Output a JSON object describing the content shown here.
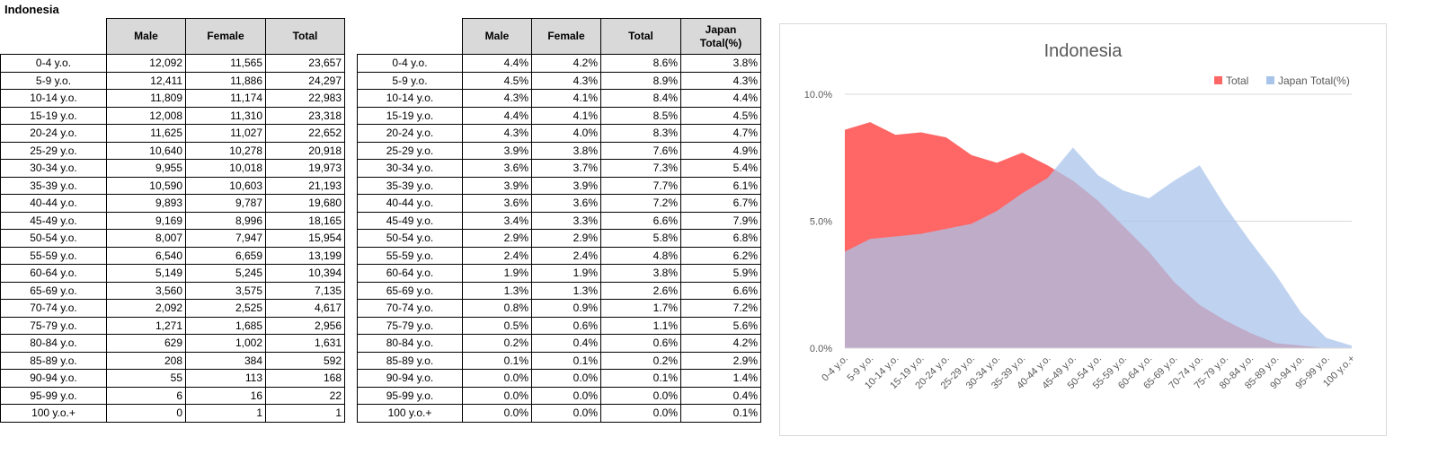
{
  "sheet_title": "Indonesia",
  "table1": {
    "headers": [
      "Male",
      "Female",
      "Total"
    ],
    "rows": [
      {
        "label": "0-4 y.o.",
        "male": "12,092",
        "female": "11,565",
        "total": "23,657"
      },
      {
        "label": "5-9 y.o.",
        "male": "12,411",
        "female": "11,886",
        "total": "24,297"
      },
      {
        "label": "10-14 y.o.",
        "male": "11,809",
        "female": "11,174",
        "total": "22,983"
      },
      {
        "label": "15-19 y.o.",
        "male": "12,008",
        "female": "11,310",
        "total": "23,318"
      },
      {
        "label": "20-24 y.o.",
        "male": "11,625",
        "female": "11,027",
        "total": "22,652"
      },
      {
        "label": "25-29 y.o.",
        "male": "10,640",
        "female": "10,278",
        "total": "20,918"
      },
      {
        "label": "30-34 y.o.",
        "male": "9,955",
        "female": "10,018",
        "total": "19,973"
      },
      {
        "label": "35-39 y.o.",
        "male": "10,590",
        "female": "10,603",
        "total": "21,193"
      },
      {
        "label": "40-44 y.o.",
        "male": "9,893",
        "female": "9,787",
        "total": "19,680"
      },
      {
        "label": "45-49 y.o.",
        "male": "9,169",
        "female": "8,996",
        "total": "18,165"
      },
      {
        "label": "50-54 y.o.",
        "male": "8,007",
        "female": "7,947",
        "total": "15,954"
      },
      {
        "label": "55-59 y.o.",
        "male": "6,540",
        "female": "6,659",
        "total": "13,199"
      },
      {
        "label": "60-64 y.o.",
        "male": "5,149",
        "female": "5,245",
        "total": "10,394"
      },
      {
        "label": "65-69 y.o.",
        "male": "3,560",
        "female": "3,575",
        "total": "7,135"
      },
      {
        "label": "70-74 y.o.",
        "male": "2,092",
        "female": "2,525",
        "total": "4,617"
      },
      {
        "label": "75-79 y.o.",
        "male": "1,271",
        "female": "1,685",
        "total": "2,956"
      },
      {
        "label": "80-84 y.o.",
        "male": "629",
        "female": "1,002",
        "total": "1,631"
      },
      {
        "label": "85-89 y.o.",
        "male": "208",
        "female": "384",
        "total": "592"
      },
      {
        "label": "90-94 y.o.",
        "male": "55",
        "female": "113",
        "total": "168"
      },
      {
        "label": "95-99 y.o.",
        "male": "6",
        "female": "16",
        "total": "22"
      },
      {
        "label": "100 y.o.+",
        "male": "0",
        "female": "1",
        "total": "1"
      }
    ]
  },
  "table2": {
    "headers": [
      "Male",
      "Female",
      "Total",
      "Japan Total(%)"
    ],
    "rows": [
      {
        "label": "0-4 y.o.",
        "male": "4.4%",
        "female": "4.2%",
        "total": "8.6%",
        "japan": "3.8%"
      },
      {
        "label": "5-9 y.o.",
        "male": "4.5%",
        "female": "4.3%",
        "total": "8.9%",
        "japan": "4.3%"
      },
      {
        "label": "10-14 y.o.",
        "male": "4.3%",
        "female": "4.1%",
        "total": "8.4%",
        "japan": "4.4%"
      },
      {
        "label": "15-19 y.o.",
        "male": "4.4%",
        "female": "4.1%",
        "total": "8.5%",
        "japan": "4.5%"
      },
      {
        "label": "20-24 y.o.",
        "male": "4.3%",
        "female": "4.0%",
        "total": "8.3%",
        "japan": "4.7%"
      },
      {
        "label": "25-29 y.o.",
        "male": "3.9%",
        "female": "3.8%",
        "total": "7.6%",
        "japan": "4.9%"
      },
      {
        "label": "30-34 y.o.",
        "male": "3.6%",
        "female": "3.7%",
        "total": "7.3%",
        "japan": "5.4%"
      },
      {
        "label": "35-39 y.o.",
        "male": "3.9%",
        "female": "3.9%",
        "total": "7.7%",
        "japan": "6.1%"
      },
      {
        "label": "40-44 y.o.",
        "male": "3.6%",
        "female": "3.6%",
        "total": "7.2%",
        "japan": "6.7%"
      },
      {
        "label": "45-49 y.o.",
        "male": "3.4%",
        "female": "3.3%",
        "total": "6.6%",
        "japan": "7.9%"
      },
      {
        "label": "50-54 y.o.",
        "male": "2.9%",
        "female": "2.9%",
        "total": "5.8%",
        "japan": "6.8%"
      },
      {
        "label": "55-59 y.o.",
        "male": "2.4%",
        "female": "2.4%",
        "total": "4.8%",
        "japan": "6.2%"
      },
      {
        "label": "60-64 y.o.",
        "male": "1.9%",
        "female": "1.9%",
        "total": "3.8%",
        "japan": "5.9%"
      },
      {
        "label": "65-69 y.o.",
        "male": "1.3%",
        "female": "1.3%",
        "total": "2.6%",
        "japan": "6.6%"
      },
      {
        "label": "70-74 y.o.",
        "male": "0.8%",
        "female": "0.9%",
        "total": "1.7%",
        "japan": "7.2%"
      },
      {
        "label": "75-79 y.o.",
        "male": "0.5%",
        "female": "0.6%",
        "total": "1.1%",
        "japan": "5.6%"
      },
      {
        "label": "80-84 y.o.",
        "male": "0.2%",
        "female": "0.4%",
        "total": "0.6%",
        "japan": "4.2%"
      },
      {
        "label": "85-89 y.o.",
        "male": "0.1%",
        "female": "0.1%",
        "total": "0.2%",
        "japan": "2.9%"
      },
      {
        "label": "90-94 y.o.",
        "male": "0.0%",
        "female": "0.0%",
        "total": "0.1%",
        "japan": "1.4%"
      },
      {
        "label": "95-99 y.o.",
        "male": "0.0%",
        "female": "0.0%",
        "total": "0.0%",
        "japan": "0.4%"
      },
      {
        "label": "100 y.o.+",
        "male": "0.0%",
        "female": "0.0%",
        "total": "0.0%",
        "japan": "0.1%"
      }
    ]
  },
  "chart_data": {
    "type": "area",
    "title": "Indonesia",
    "xlabel": "",
    "ylabel": "",
    "categories": [
      "0-4 y.o.",
      "5-9 y.o.",
      "10-14 y.o.",
      "15-19 y.o.",
      "20-24 y.o.",
      "25-29 y.o.",
      "30-34 y.o.",
      "35-39 y.o.",
      "40-44 y.o.",
      "45-49 y.o.",
      "50-54 y.o.",
      "55-59 y.o.",
      "60-64 y.o.",
      "65-69 y.o.",
      "70-74 y.o.",
      "75-79 y.o.",
      "80-84 y.o.",
      "85-89 y.o.",
      "90-94 y.o.",
      "95-99 y.o.",
      "100 y.o.+"
    ],
    "series": [
      {
        "name": "Total",
        "color": "#ff6666",
        "values": [
          8.6,
          8.9,
          8.4,
          8.5,
          8.3,
          7.6,
          7.3,
          7.7,
          7.2,
          6.6,
          5.8,
          4.8,
          3.8,
          2.6,
          1.7,
          1.1,
          0.6,
          0.2,
          0.1,
          0.0,
          0.0
        ]
      },
      {
        "name": "Japan Total(%)",
        "color": "#a9c4eb",
        "values": [
          3.8,
          4.3,
          4.4,
          4.5,
          4.7,
          4.9,
          5.4,
          6.1,
          6.7,
          7.9,
          6.8,
          6.2,
          5.9,
          6.6,
          7.2,
          5.6,
          4.2,
          2.9,
          1.4,
          0.4,
          0.1
        ]
      }
    ],
    "ylim": [
      0,
      10
    ],
    "yticks": [
      "0.0%",
      "5.0%",
      "10.0%"
    ],
    "grid": true,
    "legend": "top-right"
  }
}
